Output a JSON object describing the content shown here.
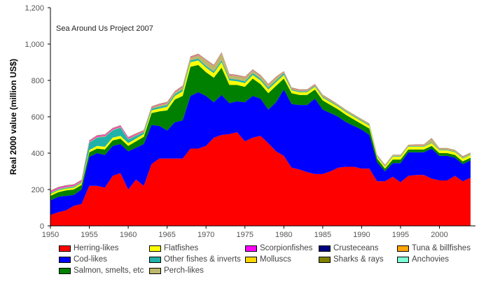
{
  "chart_data": {
    "type": "area",
    "stacked": true,
    "title": "",
    "annotation": "Sea Around Us Project 2007",
    "xlabel": "",
    "ylabel": "Real 2000 value (million US$)",
    "xlim": [
      1950,
      2004
    ],
    "ylim": [
      0,
      1200
    ],
    "x_ticks": [
      1950,
      1955,
      1960,
      1965,
      1970,
      1975,
      1980,
      1985,
      1990,
      1995,
      2000
    ],
    "y_ticks": [
      0,
      200,
      400,
      600,
      800,
      1000,
      1200
    ],
    "y_tick_labels": [
      "0",
      "200",
      "400",
      "600",
      "800",
      "1,000",
      "1,200"
    ],
    "grid": false,
    "legend_position": "bottom",
    "x": [
      1950,
      1951,
      1952,
      1953,
      1954,
      1955,
      1956,
      1957,
      1958,
      1959,
      1960,
      1961,
      1962,
      1963,
      1964,
      1965,
      1966,
      1967,
      1968,
      1969,
      1970,
      1971,
      1972,
      1973,
      1974,
      1975,
      1976,
      1977,
      1978,
      1979,
      1980,
      1981,
      1982,
      1983,
      1984,
      1985,
      1986,
      1987,
      1988,
      1989,
      1990,
      1991,
      1992,
      1993,
      1994,
      1995,
      1996,
      1997,
      1998,
      1999,
      2000,
      2001,
      2002,
      2003,
      2004
    ],
    "series": [
      {
        "name": "Herring-likes",
        "color": "#ff0000",
        "values": [
          60,
          75,
          85,
          110,
          120,
          220,
          220,
          210,
          275,
          290,
          200,
          255,
          220,
          340,
          370,
          370,
          370,
          370,
          425,
          425,
          440,
          485,
          500,
          505,
          515,
          465,
          485,
          495,
          455,
          410,
          385,
          320,
          310,
          295,
          285,
          285,
          300,
          320,
          325,
          325,
          315,
          315,
          245,
          245,
          270,
          240,
          275,
          280,
          280,
          260,
          250,
          250,
          275,
          245,
          265
        ]
      },
      {
        "name": "Cod-likes",
        "color": "#0000ff",
        "values": [
          80,
          85,
          80,
          60,
          80,
          160,
          180,
          180,
          165,
          160,
          210,
          175,
          230,
          215,
          180,
          155,
          200,
          210,
          290,
          310,
          275,
          195,
          220,
          170,
          170,
          215,
          230,
          205,
          185,
          270,
          365,
          350,
          355,
          370,
          415,
          355,
          320,
          280,
          245,
          225,
          215,
          185,
          105,
          55,
          75,
          105,
          130,
          125,
          125,
          165,
          135,
          135,
          100,
          95,
          95
        ]
      },
      {
        "name": "Salmon, smelts, etc",
        "color": "#008000",
        "values": [
          25,
          25,
          30,
          30,
          25,
          25,
          25,
          30,
          30,
          30,
          30,
          35,
          40,
          65,
          80,
          110,
          125,
          135,
          160,
          150,
          130,
          135,
          150,
          100,
          90,
          85,
          95,
          80,
          90,
          90,
          60,
          60,
          55,
          55,
          50,
          50,
          45,
          40,
          40,
          35,
          30,
          35,
          20,
          15,
          20,
          20,
          15,
          15,
          15,
          15,
          15,
          15,
          15,
          15,
          15
        ]
      },
      {
        "name": "Flatfishes",
        "color": "#ffff00",
        "values": [
          10,
          10,
          10,
          10,
          10,
          12,
          15,
          15,
          15,
          15,
          15,
          15,
          15,
          15,
          15,
          20,
          20,
          25,
          25,
          25,
          25,
          25,
          30,
          25,
          20,
          20,
          20,
          20,
          20,
          20,
          20,
          15,
          15,
          15,
          15,
          15,
          15,
          15,
          15,
          15,
          15,
          15,
          10,
          10,
          15,
          15,
          15,
          15,
          15,
          15,
          15,
          15,
          15,
          15,
          15
        ]
      },
      {
        "name": "Other fishes & inverts",
        "color": "#20b2aa",
        "values": [
          5,
          5,
          5,
          5,
          5,
          40,
          45,
          55,
          40,
          45,
          20,
          15,
          10,
          10,
          10,
          10,
          10,
          10,
          10,
          10,
          10,
          10,
          10,
          10,
          10,
          10,
          10,
          10,
          10,
          10,
          10,
          5,
          5,
          5,
          5,
          5,
          5,
          5,
          5,
          5,
          5,
          5,
          3,
          3,
          3,
          3,
          3,
          3,
          3,
          3,
          3,
          3,
          3,
          3,
          3
        ]
      },
      {
        "name": "Perch-likes",
        "color": "#bdb76b",
        "values": [
          5,
          5,
          5,
          5,
          5,
          5,
          5,
          5,
          5,
          5,
          5,
          5,
          5,
          5,
          10,
          10,
          10,
          15,
          15,
          20,
          30,
          30,
          40,
          20,
          20,
          20,
          15,
          15,
          15,
          15,
          5,
          5,
          5,
          5,
          5,
          5,
          5,
          3,
          3,
          3,
          3,
          3,
          3,
          3,
          3,
          3,
          3,
          5,
          5,
          20,
          5,
          5,
          5,
          5,
          5
        ]
      },
      {
        "name": "Scorpionfishes",
        "color": "#ff00ff",
        "values": [
          5,
          5,
          5,
          5,
          5,
          5,
          5,
          5,
          5,
          5,
          5,
          5,
          3,
          3,
          3,
          3,
          3,
          3,
          3,
          3,
          2,
          2,
          2,
          2,
          2,
          2,
          2,
          2,
          2,
          2,
          2,
          2,
          2,
          2,
          2,
          2,
          1,
          1,
          1,
          1,
          1,
          1,
          1,
          1,
          1,
          1,
          1,
          1,
          1,
          1,
          1,
          1,
          1,
          1,
          1
        ]
      },
      {
        "name": "Molluscs",
        "color": "#ffd700",
        "values": [
          2,
          2,
          2,
          2,
          2,
          2,
          2,
          2,
          2,
          2,
          2,
          2,
          2,
          2,
          2,
          2,
          2,
          2,
          2,
          2,
          2,
          2,
          2,
          2,
          2,
          2,
          2,
          2,
          2,
          2,
          2,
          2,
          2,
          2,
          2,
          2,
          2,
          2,
          2,
          2,
          2,
          2,
          2,
          2,
          2,
          2,
          2,
          2,
          2,
          2,
          2,
          2,
          2,
          2,
          2
        ]
      },
      {
        "name": "Crusteceans",
        "color": "#000080",
        "values": [
          1,
          1,
          1,
          1,
          1,
          1,
          1,
          1,
          1,
          1,
          1,
          1,
          1,
          1,
          1,
          1,
          1,
          1,
          1,
          1,
          1,
          1,
          1,
          1,
          1,
          1,
          1,
          1,
          1,
          1,
          1,
          1,
          1,
          1,
          1,
          1,
          1,
          1,
          1,
          1,
          1,
          1,
          1,
          1,
          1,
          1,
          1,
          1,
          1,
          1,
          1,
          1,
          1,
          1,
          1
        ]
      },
      {
        "name": "Sharks & rays",
        "color": "#808000",
        "values": [
          1,
          1,
          1,
          1,
          1,
          1,
          1,
          1,
          1,
          1,
          1,
          1,
          1,
          1,
          1,
          1,
          1,
          1,
          1,
          1,
          1,
          1,
          1,
          1,
          1,
          1,
          1,
          1,
          1,
          1,
          1,
          1,
          1,
          1,
          1,
          1,
          1,
          1,
          1,
          1,
          1,
          1,
          1,
          1,
          1,
          1,
          1,
          1,
          1,
          1,
          1,
          1,
          1,
          1,
          1
        ]
      },
      {
        "name": "Tuna & billfishes",
        "color": "#ffa500",
        "values": [
          0,
          0,
          0,
          0,
          0,
          0,
          0,
          0,
          0,
          0,
          0,
          0,
          0,
          0,
          0,
          0,
          0,
          0,
          0,
          0,
          0,
          0,
          0,
          0,
          0,
          0,
          0,
          0,
          0,
          0,
          0,
          0,
          0,
          0,
          0,
          0,
          0,
          0,
          0,
          0,
          0,
          0,
          0,
          0,
          0,
          0,
          0,
          0,
          0,
          0,
          0,
          0,
          0,
          0,
          0
        ]
      },
      {
        "name": "Anchovies",
        "color": "#7fffd4",
        "values": [
          0,
          0,
          0,
          0,
          0,
          0,
          0,
          0,
          0,
          0,
          0,
          0,
          0,
          0,
          0,
          0,
          0,
          0,
          0,
          0,
          0,
          0,
          0,
          0,
          0,
          0,
          0,
          0,
          0,
          0,
          0,
          0,
          0,
          0,
          0,
          0,
          0,
          0,
          0,
          0,
          0,
          0,
          0,
          0,
          0,
          0,
          0,
          0,
          0,
          0,
          0,
          0,
          0,
          0,
          0
        ]
      }
    ],
    "legend": [
      {
        "label": "Herring-likes",
        "color": "#ff0000"
      },
      {
        "label": "Cod-likes",
        "color": "#0000ff"
      },
      {
        "label": "Salmon, smelts, etc",
        "color": "#008000"
      },
      {
        "label": "Flatfishes",
        "color": "#ffff00"
      },
      {
        "label": "Other fishes & inverts",
        "color": "#20b2aa"
      },
      {
        "label": "Perch-likes",
        "color": "#bdb76b"
      },
      {
        "label": "Scorpionfishes",
        "color": "#ff00ff"
      },
      {
        "label": "Molluscs",
        "color": "#ffd700"
      },
      {
        "label": "Crusteceans",
        "color": "#000080"
      },
      {
        "label": "Sharks & rays",
        "color": "#808000"
      },
      {
        "label": "Tuna & billfishes",
        "color": "#ffa500"
      },
      {
        "label": "Anchovies",
        "color": "#7fffd4"
      }
    ]
  }
}
